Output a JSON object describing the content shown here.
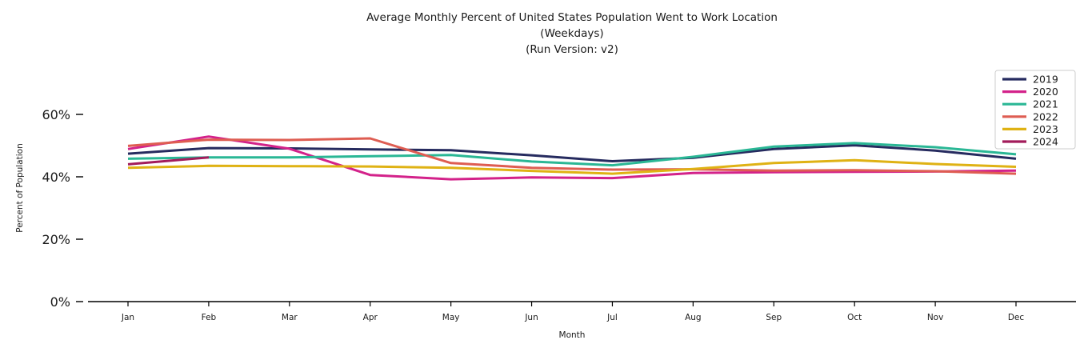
{
  "title": {
    "line1": "Average Monthly Percent of United States Population Went to Work Location",
    "line2": "(Weekdays)",
    "line3": "(Run Version: v2)"
  },
  "chart_data": {
    "type": "line",
    "title": "Average Monthly Percent of United States Population Went to Work Location (Weekdays) (Run Version: v2)",
    "xlabel": "Month",
    "ylabel": "Percent of Population",
    "x": [
      "Jan",
      "Feb",
      "Mar",
      "Apr",
      "May",
      "Jun",
      "Jul",
      "Aug",
      "Sep",
      "Oct",
      "Nov",
      "Dec"
    ],
    "y_tick_labels": [
      "0%",
      "20%",
      "40%",
      "60%"
    ],
    "y_tick_values": [
      0,
      20,
      40,
      60
    ],
    "ylim": [
      0,
      62
    ],
    "grid": false,
    "legend_position": "upper right",
    "series": [
      {
        "name": "2019",
        "color": "#262b5f",
        "values": [
          47.4,
          49.2,
          49.1,
          48.8,
          48.5,
          46.9,
          45.0,
          46.1,
          48.9,
          50.1,
          48.4,
          45.8
        ]
      },
      {
        "name": "2020",
        "color": "#d3228a",
        "values": [
          48.9,
          52.9,
          49.0,
          40.6,
          39.2,
          39.8,
          39.6,
          41.2,
          41.5,
          41.6,
          41.7,
          42.0
        ]
      },
      {
        "name": "2021",
        "color": "#2ab795",
        "values": [
          45.8,
          46.2,
          46.2,
          46.6,
          47.0,
          44.9,
          43.7,
          46.4,
          49.7,
          50.8,
          49.5,
          47.2
        ]
      },
      {
        "name": "2022",
        "color": "#de5d52",
        "values": [
          49.9,
          51.9,
          51.8,
          52.3,
          44.4,
          42.9,
          42.3,
          42.4,
          42.0,
          42.1,
          41.8,
          41.0
        ]
      },
      {
        "name": "2023",
        "color": "#dfb214",
        "values": [
          42.9,
          43.5,
          43.4,
          43.3,
          42.9,
          41.9,
          41.0,
          42.5,
          44.4,
          45.3,
          44.1,
          43.2
        ]
      },
      {
        "name": "2024",
        "color": "#a21c5b",
        "values": [
          44.0,
          46.2,
          null,
          null,
          null,
          null,
          null,
          null,
          null,
          null,
          null,
          null
        ]
      }
    ]
  },
  "style": {
    "axis_color": "#000000",
    "background": "#ffffff",
    "legend_border": "#cccccc",
    "legend_fill_opacity": 0.8
  }
}
